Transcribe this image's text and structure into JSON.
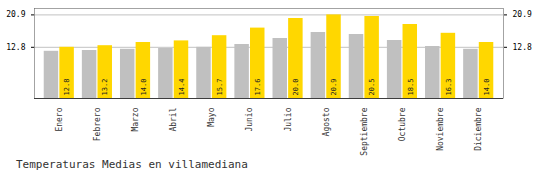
{
  "chart_data": {
    "type": "bar",
    "title": "Temperaturas Medias en villamediana",
    "categories": [
      "Enero",
      "Febrero",
      "Marzo",
      "Abril",
      "Mayo",
      "Junio",
      "Julio",
      "Agosto",
      "Septiembre",
      "Octubre",
      "Noviembre",
      "Diciembre"
    ],
    "series": [
      {
        "color": "#C0C0C0",
        "values": [
          11.8,
          12.0,
          12.3,
          12.5,
          12.8,
          13.5,
          15.0,
          16.5,
          16.0,
          14.5,
          13.0,
          12.3
        ]
      },
      {
        "color": "#FFD700",
        "values": [
          12.8,
          13.2,
          14.0,
          14.4,
          15.7,
          17.6,
          20.0,
          20.9,
          20.5,
          18.5,
          16.3,
          14.0
        ],
        "value_labels": [
          "12.8",
          "13.2",
          "14.0",
          "14.4",
          "15.7",
          "17.6",
          "20.0",
          "20.9",
          "20.5",
          "18.5",
          "16.3",
          "14.0"
        ]
      }
    ],
    "ylim": [
      0,
      22.5
    ],
    "yticks": [
      12.8,
      20.9
    ],
    "y2lim": [
      0,
      22.5
    ],
    "y2ticks": [
      12.8,
      20.9
    ],
    "grid": true,
    "data_labels": true
  }
}
